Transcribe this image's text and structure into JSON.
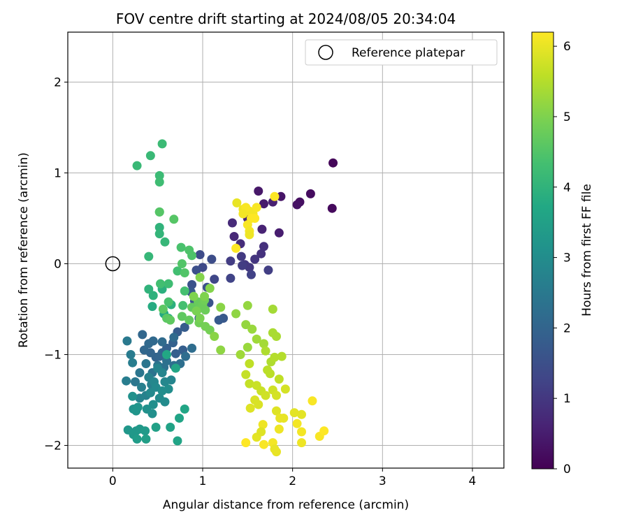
{
  "chart_data": {
    "type": "scatter",
    "title": "FOV centre drift starting at 2024/08/05 20:34:04",
    "xlabel": "Angular distance from reference (arcmin)",
    "ylabel": "Rotation from reference (arcmin)",
    "xlim": [
      -0.5,
      4.35
    ],
    "ylim": [
      -2.25,
      2.55
    ],
    "xticks": [
      "0",
      "1",
      "2",
      "3",
      "4"
    ],
    "yticks": [
      "−2",
      "−1",
      "0",
      "1",
      "2"
    ],
    "grid": true,
    "legend_position": "top-right",
    "legend_label": "Reference platepar",
    "reference_point": {
      "x": 0,
      "y": 0
    },
    "colorbar": {
      "label": "Hours from first FF file",
      "colormap": "viridis",
      "range": [
        0,
        6.2
      ],
      "ticks": [
        "0",
        "1",
        "2",
        "3",
        "4",
        "5",
        "6"
      ]
    },
    "points": [
      [
        2.45,
        1.11,
        0.1
      ],
      [
        2.44,
        0.61,
        0.15
      ],
      [
        2.2,
        0.77,
        0.2
      ],
      [
        2.08,
        0.68,
        0.25
      ],
      [
        2.05,
        0.65,
        0.3
      ],
      [
        1.87,
        0.74,
        0.35
      ],
      [
        1.62,
        0.8,
        0.4
      ],
      [
        1.68,
        0.66,
        0.45
      ],
      [
        1.85,
        0.34,
        0.5
      ],
      [
        1.78,
        0.68,
        0.55
      ],
      [
        1.66,
        0.38,
        0.6
      ],
      [
        1.5,
        0.5,
        0.65
      ],
      [
        1.35,
        0.3,
        0.7
      ],
      [
        1.33,
        0.45,
        0.75
      ],
      [
        1.42,
        0.22,
        0.8
      ],
      [
        1.68,
        0.19,
        0.85
      ],
      [
        1.65,
        0.11,
        0.9
      ],
      [
        1.58,
        0.05,
        0.95
      ],
      [
        1.47,
        -0.01,
        1.0
      ],
      [
        1.52,
        -0.04,
        1.0
      ],
      [
        1.43,
        0.08,
        1.05
      ],
      [
        1.44,
        -0.02,
        1.1
      ],
      [
        1.31,
        0.03,
        1.1
      ],
      [
        1.73,
        -0.07,
        1.15
      ],
      [
        1.54,
        -0.12,
        1.2
      ],
      [
        1.31,
        -0.16,
        1.25
      ],
      [
        1.13,
        -0.17,
        1.3
      ],
      [
        1.0,
        -0.04,
        1.35
      ],
      [
        0.97,
        0.1,
        1.4
      ],
      [
        1.1,
        0.05,
        1.45
      ],
      [
        0.93,
        -0.07,
        1.5
      ],
      [
        1.05,
        -0.26,
        1.5
      ],
      [
        0.88,
        -0.23,
        1.55
      ],
      [
        1.07,
        -0.43,
        1.6
      ],
      [
        0.91,
        -0.41,
        1.65
      ],
      [
        0.87,
        -0.31,
        1.7
      ],
      [
        1.23,
        -0.6,
        1.7
      ],
      [
        1.18,
        -0.62,
        1.75
      ],
      [
        0.96,
        -0.6,
        1.75
      ],
      [
        0.8,
        -0.7,
        1.8
      ],
      [
        0.72,
        -0.75,
        1.8
      ],
      [
        0.78,
        -0.95,
        1.85
      ],
      [
        0.7,
        -0.99,
        1.85
      ],
      [
        0.67,
        -0.87,
        1.9
      ],
      [
        0.6,
        -0.93,
        1.9
      ],
      [
        0.55,
        -0.98,
        1.95
      ],
      [
        0.48,
        -1.03,
        1.95
      ],
      [
        0.52,
        -1.02,
        2.0
      ],
      [
        0.42,
        -0.98,
        2.0
      ],
      [
        0.35,
        -0.95,
        2.05
      ],
      [
        0.33,
        -0.78,
        2.05
      ],
      [
        0.4,
        -0.88,
        2.1
      ],
      [
        0.45,
        -0.85,
        2.1
      ],
      [
        0.55,
        -0.86,
        2.15
      ],
      [
        0.68,
        -0.81,
        2.15
      ],
      [
        0.88,
        -0.93,
        2.2
      ],
      [
        0.81,
        -1.02,
        2.2
      ],
      [
        0.75,
        -1.1,
        2.25
      ],
      [
        0.68,
        -1.12,
        2.25
      ],
      [
        0.6,
        -1.07,
        2.3
      ],
      [
        0.57,
        -1.14,
        2.3
      ],
      [
        0.5,
        -1.12,
        2.35
      ],
      [
        0.44,
        -1.2,
        2.35
      ],
      [
        0.37,
        -1.1,
        2.4
      ],
      [
        0.3,
        -1.2,
        2.4
      ],
      [
        0.25,
        -1.3,
        2.45
      ],
      [
        0.16,
        -0.85,
        2.5
      ],
      [
        0.2,
        -1.0,
        2.55
      ],
      [
        0.22,
        -1.09,
        2.6
      ],
      [
        0.15,
        -1.29,
        2.6
      ],
      [
        0.32,
        -1.36,
        2.65
      ],
      [
        0.43,
        -1.33,
        2.65
      ],
      [
        0.4,
        -1.25,
        2.7
      ],
      [
        0.37,
        -1.45,
        2.7
      ],
      [
        0.3,
        -1.48,
        2.75
      ],
      [
        0.5,
        -1.15,
        2.75
      ],
      [
        0.55,
        -1.2,
        2.8
      ],
      [
        0.65,
        -1.28,
        2.8
      ],
      [
        0.58,
        -1.3,
        2.85
      ],
      [
        0.46,
        -1.3,
        2.85
      ],
      [
        0.42,
        -1.42,
        2.9
      ],
      [
        0.48,
        -1.36,
        2.9
      ],
      [
        0.52,
        -1.48,
        2.95
      ],
      [
        0.58,
        -1.52,
        2.95
      ],
      [
        0.62,
        -1.38,
        3.0
      ],
      [
        0.55,
        -1.4,
        3.0
      ],
      [
        0.45,
        -1.55,
        3.05
      ],
      [
        0.44,
        -1.65,
        3.05
      ],
      [
        0.38,
        -1.6,
        3.1
      ],
      [
        0.22,
        -1.46,
        3.1
      ],
      [
        0.23,
        -1.6,
        3.15
      ],
      [
        0.26,
        -1.62,
        3.2
      ],
      [
        0.28,
        -1.58,
        3.2
      ],
      [
        0.17,
        -1.83,
        3.25
      ],
      [
        0.26,
        -1.84,
        3.25
      ],
      [
        0.23,
        -1.88,
        3.3
      ],
      [
        0.3,
        -1.82,
        3.3
      ],
      [
        0.36,
        -1.84,
        3.35
      ],
      [
        0.27,
        -1.93,
        3.4
      ],
      [
        0.37,
        -1.93,
        3.45
      ],
      [
        0.48,
        -1.8,
        3.5
      ],
      [
        0.64,
        -1.8,
        3.55
      ],
      [
        0.72,
        -1.95,
        3.6
      ],
      [
        0.74,
        -1.7,
        3.6
      ],
      [
        0.8,
        -1.6,
        3.65
      ],
      [
        0.7,
        -1.15,
        3.65
      ],
      [
        0.6,
        -1.0,
        3.7
      ],
      [
        0.57,
        -0.55,
        3.75
      ],
      [
        0.44,
        -0.47,
        3.8
      ],
      [
        0.62,
        -0.6,
        3.85
      ],
      [
        0.65,
        -0.45,
        3.9
      ],
      [
        0.55,
        -0.28,
        3.9
      ],
      [
        0.45,
        -0.35,
        3.95
      ],
      [
        0.4,
        -0.28,
        4.0
      ],
      [
        0.52,
        0.4,
        4.0
      ],
      [
        0.52,
        0.57,
        4.05
      ],
      [
        0.52,
        0.33,
        4.05
      ],
      [
        0.58,
        0.24,
        4.1
      ],
      [
        0.4,
        0.08,
        4.1
      ],
      [
        0.42,
        1.19,
        4.15
      ],
      [
        0.27,
        1.08,
        4.15
      ],
      [
        0.55,
        1.32,
        4.2
      ],
      [
        0.52,
        0.97,
        4.2
      ],
      [
        0.52,
        0.9,
        4.25
      ],
      [
        0.62,
        -0.22,
        4.25
      ],
      [
        0.53,
        -0.22,
        4.3
      ],
      [
        0.72,
        -0.08,
        4.3
      ],
      [
        0.8,
        -0.3,
        4.35
      ],
      [
        0.78,
        -0.46,
        4.35
      ],
      [
        0.62,
        -0.42,
        4.4
      ],
      [
        0.76,
        0.18,
        4.4
      ],
      [
        0.85,
        0.15,
        4.45
      ],
      [
        0.88,
        0.09,
        4.45
      ],
      [
        0.8,
        -0.1,
        4.5
      ],
      [
        0.77,
        0.0,
        4.5
      ],
      [
        0.68,
        0.49,
        4.55
      ],
      [
        0.52,
        0.57,
        4.55
      ],
      [
        0.56,
        -0.5,
        4.6
      ],
      [
        0.6,
        -0.6,
        4.6
      ],
      [
        0.64,
        -0.62,
        4.65
      ],
      [
        0.77,
        -0.58,
        4.65
      ],
      [
        0.85,
        -0.62,
        4.7
      ],
      [
        0.88,
        -0.48,
        4.7
      ],
      [
        0.95,
        -0.42,
        4.75
      ],
      [
        0.94,
        -0.51,
        4.75
      ],
      [
        1.0,
        -0.45,
        4.8
      ],
      [
        1.03,
        -0.51,
        4.8
      ],
      [
        1.02,
        -0.4,
        4.85
      ],
      [
        0.96,
        -0.65,
        4.85
      ],
      [
        1.03,
        -0.69,
        4.9
      ],
      [
        1.08,
        -0.73,
        4.9
      ],
      [
        0.93,
        -0.52,
        4.95
      ],
      [
        0.97,
        -0.6,
        4.95
      ],
      [
        0.9,
        -0.36,
        5.0
      ],
      [
        1.02,
        -0.36,
        5.0
      ],
      [
        0.97,
        -0.15,
        5.05
      ],
      [
        1.08,
        -0.27,
        5.05
      ],
      [
        1.2,
        -0.48,
        5.1
      ],
      [
        1.13,
        -0.8,
        5.1
      ],
      [
        1.2,
        -0.95,
        5.15
      ],
      [
        1.37,
        -0.55,
        5.15
      ],
      [
        1.5,
        -0.46,
        5.2
      ],
      [
        1.48,
        -0.67,
        5.2
      ],
      [
        1.55,
        -0.72,
        5.25
      ],
      [
        1.5,
        -0.92,
        5.25
      ],
      [
        1.42,
        -1.0,
        5.3
      ],
      [
        1.6,
        -0.83,
        5.3
      ],
      [
        1.68,
        -0.88,
        5.35
      ],
      [
        1.78,
        -0.5,
        5.35
      ],
      [
        1.78,
        -0.76,
        5.4
      ],
      [
        1.82,
        -0.8,
        5.4
      ],
      [
        1.7,
        -0.96,
        5.45
      ],
      [
        1.76,
        -1.08,
        5.45
      ],
      [
        1.8,
        -1.03,
        5.5
      ],
      [
        1.88,
        -1.02,
        5.5
      ],
      [
        1.72,
        -1.17,
        5.55
      ],
      [
        1.75,
        -1.21,
        5.55
      ],
      [
        1.85,
        -1.27,
        5.6
      ],
      [
        1.52,
        -1.1,
        5.6
      ],
      [
        1.48,
        -1.22,
        5.65
      ],
      [
        1.52,
        -1.32,
        5.65
      ],
      [
        1.6,
        -1.34,
        5.7
      ],
      [
        1.65,
        -1.4,
        5.7
      ],
      [
        1.7,
        -1.45,
        5.75
      ],
      [
        1.78,
        -1.39,
        5.75
      ],
      [
        1.82,
        -1.45,
        5.8
      ],
      [
        1.92,
        -1.38,
        5.8
      ],
      [
        1.58,
        -1.5,
        5.85
      ],
      [
        1.62,
        -1.55,
        5.85
      ],
      [
        1.53,
        -1.59,
        5.9
      ],
      [
        1.82,
        -1.62,
        5.9
      ],
      [
        2.02,
        -1.64,
        5.95
      ],
      [
        2.1,
        -1.66,
        5.95
      ],
      [
        1.86,
        -1.7,
        6.0
      ],
      [
        1.9,
        -1.7,
        6.0
      ],
      [
        1.67,
        -1.77,
        6.05
      ],
      [
        1.85,
        -1.82,
        6.05
      ],
      [
        2.05,
        -1.76,
        6.1
      ],
      [
        2.1,
        -1.85,
        6.1
      ],
      [
        2.22,
        -1.51,
        6.15
      ],
      [
        2.3,
        -1.9,
        6.15
      ],
      [
        2.35,
        -1.84,
        6.2
      ],
      [
        1.48,
        -1.97,
        6.2
      ],
      [
        1.68,
        -1.99,
        6.15
      ],
      [
        1.78,
        -1.97,
        6.1
      ],
      [
        2.1,
        -1.97,
        6.05
      ],
      [
        1.82,
        -2.07,
        6.0
      ],
      [
        1.8,
        -2.04,
        6.0
      ],
      [
        1.6,
        -1.91,
        5.95
      ],
      [
        1.65,
        -1.85,
        5.9
      ],
      [
        1.38,
        0.67,
        6.0
      ],
      [
        1.45,
        0.6,
        6.05
      ],
      [
        1.52,
        0.58,
        6.1
      ],
      [
        1.48,
        0.62,
        6.15
      ],
      [
        1.56,
        0.55,
        6.1
      ],
      [
        1.6,
        0.62,
        6.15
      ],
      [
        1.54,
        0.5,
        6.2
      ],
      [
        1.58,
        0.5,
        6.2
      ],
      [
        1.5,
        0.43,
        6.15
      ],
      [
        1.52,
        0.36,
        6.1
      ],
      [
        1.52,
        0.32,
        6.05
      ],
      [
        1.8,
        0.74,
        6.2
      ],
      [
        1.37,
        0.17,
        6.2
      ],
      [
        1.45,
        0.55,
        6.1
      ]
    ]
  }
}
